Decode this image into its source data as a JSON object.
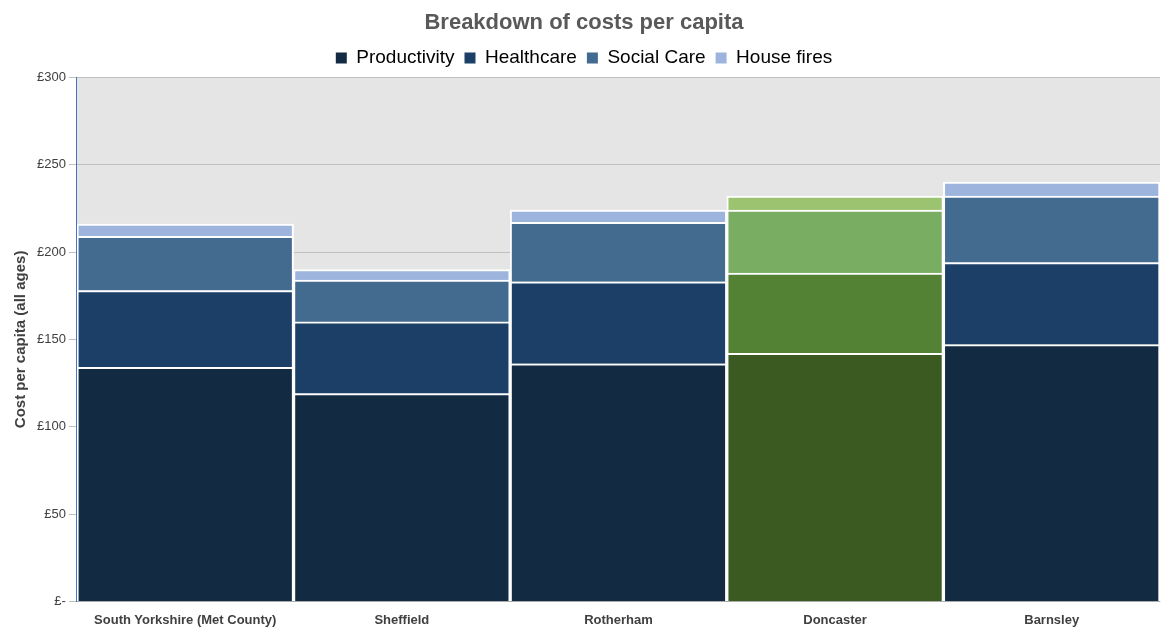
{
  "chart_data": {
    "type": "bar",
    "title": "Breakdown of costs per capita",
    "ylabel": "Cost per capita (all ages)",
    "categories": [
      "South Yorkshire (Met County)",
      "Sheffield",
      "Rotherham",
      "Doncaster",
      "Barnsley"
    ],
    "stacked": true,
    "series": [
      {
        "name": "Productivity",
        "color": "#132a43",
        "colors": [
          "#132a43",
          "#132a43",
          "#132a43",
          "#3b5a22",
          "#132a43"
        ],
        "values": [
          134,
          119,
          136,
          142,
          147
        ]
      },
      {
        "name": "Healthcare",
        "color": "#1b3f66",
        "colors": [
          "#1b3f66",
          "#1b3f66",
          "#1b3f66",
          "#548235",
          "#1b3f66"
        ],
        "values": [
          44,
          41,
          47,
          46,
          47
        ]
      },
      {
        "name": "Social Care",
        "color": "#436a8f",
        "colors": [
          "#436a8f",
          "#436a8f",
          "#436a8f",
          "#79ad62",
          "#436a8f"
        ],
        "values": [
          31,
          24,
          34,
          36,
          38
        ]
      },
      {
        "name": "House fires",
        "color": "#9db5dd",
        "colors": [
          "#9db5dd",
          "#9db5dd",
          "#9db5dd",
          "#9cc36f",
          "#9db5dd"
        ],
        "values": [
          7,
          6,
          7,
          8,
          8
        ]
      }
    ],
    "ylim": [
      0,
      300
    ],
    "yticks": [
      {
        "value": 0,
        "label": "£-"
      },
      {
        "value": 50,
        "label": "£50"
      },
      {
        "value": 100,
        "label": "£100"
      },
      {
        "value": 150,
        "label": "£150"
      },
      {
        "value": 200,
        "label": "£200"
      },
      {
        "value": 250,
        "label": "£250"
      },
      {
        "value": 300,
        "label": "£300"
      }
    ],
    "grid": "y",
    "legend": "top"
  }
}
